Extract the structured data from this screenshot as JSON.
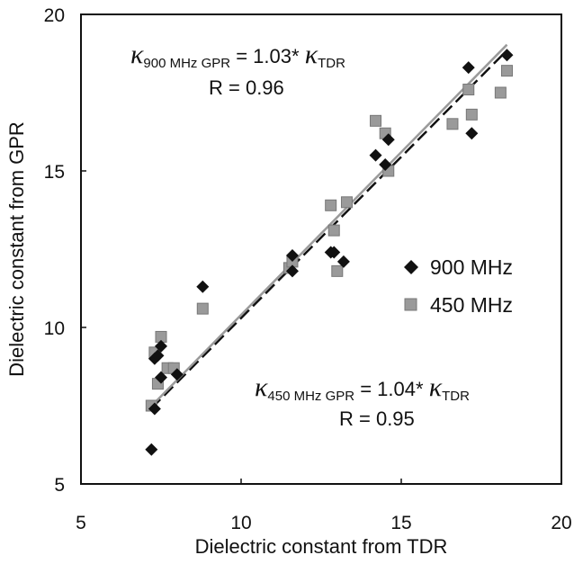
{
  "chart_data": {
    "type": "scatter",
    "xlabel": "Dielectric constant from TDR",
    "ylabel": "Dielectric constant from GPR",
    "xlim": [
      5,
      20
    ],
    "ylim": [
      5,
      20
    ],
    "x_ticks": [
      "5",
      "10",
      "15",
      "20"
    ],
    "y_ticks": [
      "5",
      "10",
      "15",
      "20"
    ],
    "grid": false,
    "legend_position": "right",
    "series": [
      {
        "name": "900 MHz",
        "marker": "diamond",
        "color": "#111111",
        "points": [
          [
            7.2,
            6.1
          ],
          [
            7.3,
            7.4
          ],
          [
            7.3,
            9.0
          ],
          [
            7.4,
            9.1
          ],
          [
            7.5,
            9.4
          ],
          [
            7.5,
            8.4
          ],
          [
            8.0,
            8.5
          ],
          [
            8.8,
            11.3
          ],
          [
            11.6,
            12.3
          ],
          [
            11.6,
            11.8
          ],
          [
            12.8,
            12.4
          ],
          [
            12.9,
            12.4
          ],
          [
            13.2,
            12.1
          ],
          [
            14.2,
            15.5
          ],
          [
            14.6,
            16.0
          ],
          [
            14.5,
            15.2
          ],
          [
            17.1,
            18.3
          ],
          [
            17.2,
            16.2
          ],
          [
            18.3,
            18.7
          ]
        ],
        "fit_label": {
          "kappa": "κ",
          "sub": "900 MHz GPR",
          "eq": " = 1.03* ",
          "kappa2": "κ",
          "sub2": "TDR",
          "r": "R = 0.96"
        },
        "fit_slope": 1.03,
        "line_style": "dashed"
      },
      {
        "name": "450 MHz",
        "marker": "square",
        "color": "#9a9a9a",
        "points": [
          [
            7.2,
            7.5
          ],
          [
            7.3,
            9.2
          ],
          [
            7.4,
            8.2
          ],
          [
            7.5,
            9.7
          ],
          [
            7.7,
            8.7
          ],
          [
            7.9,
            8.7
          ],
          [
            8.8,
            10.6
          ],
          [
            11.5,
            11.9
          ],
          [
            11.6,
            12.1
          ],
          [
            12.8,
            13.9
          ],
          [
            12.9,
            13.1
          ],
          [
            13.0,
            11.8
          ],
          [
            13.3,
            14.0
          ],
          [
            14.2,
            16.6
          ],
          [
            14.5,
            16.2
          ],
          [
            14.6,
            15.0
          ],
          [
            16.6,
            16.5
          ],
          [
            17.1,
            17.6
          ],
          [
            17.2,
            16.8
          ],
          [
            18.1,
            17.5
          ],
          [
            18.3,
            18.2
          ]
        ],
        "fit_label": {
          "kappa": "κ",
          "sub": "450 MHz GPR",
          "eq": " = 1.04* ",
          "kappa2": "κ",
          "sub2": "TDR",
          "r": "R = 0.95"
        },
        "fit_slope": 1.04,
        "line_style": "solid"
      }
    ]
  }
}
